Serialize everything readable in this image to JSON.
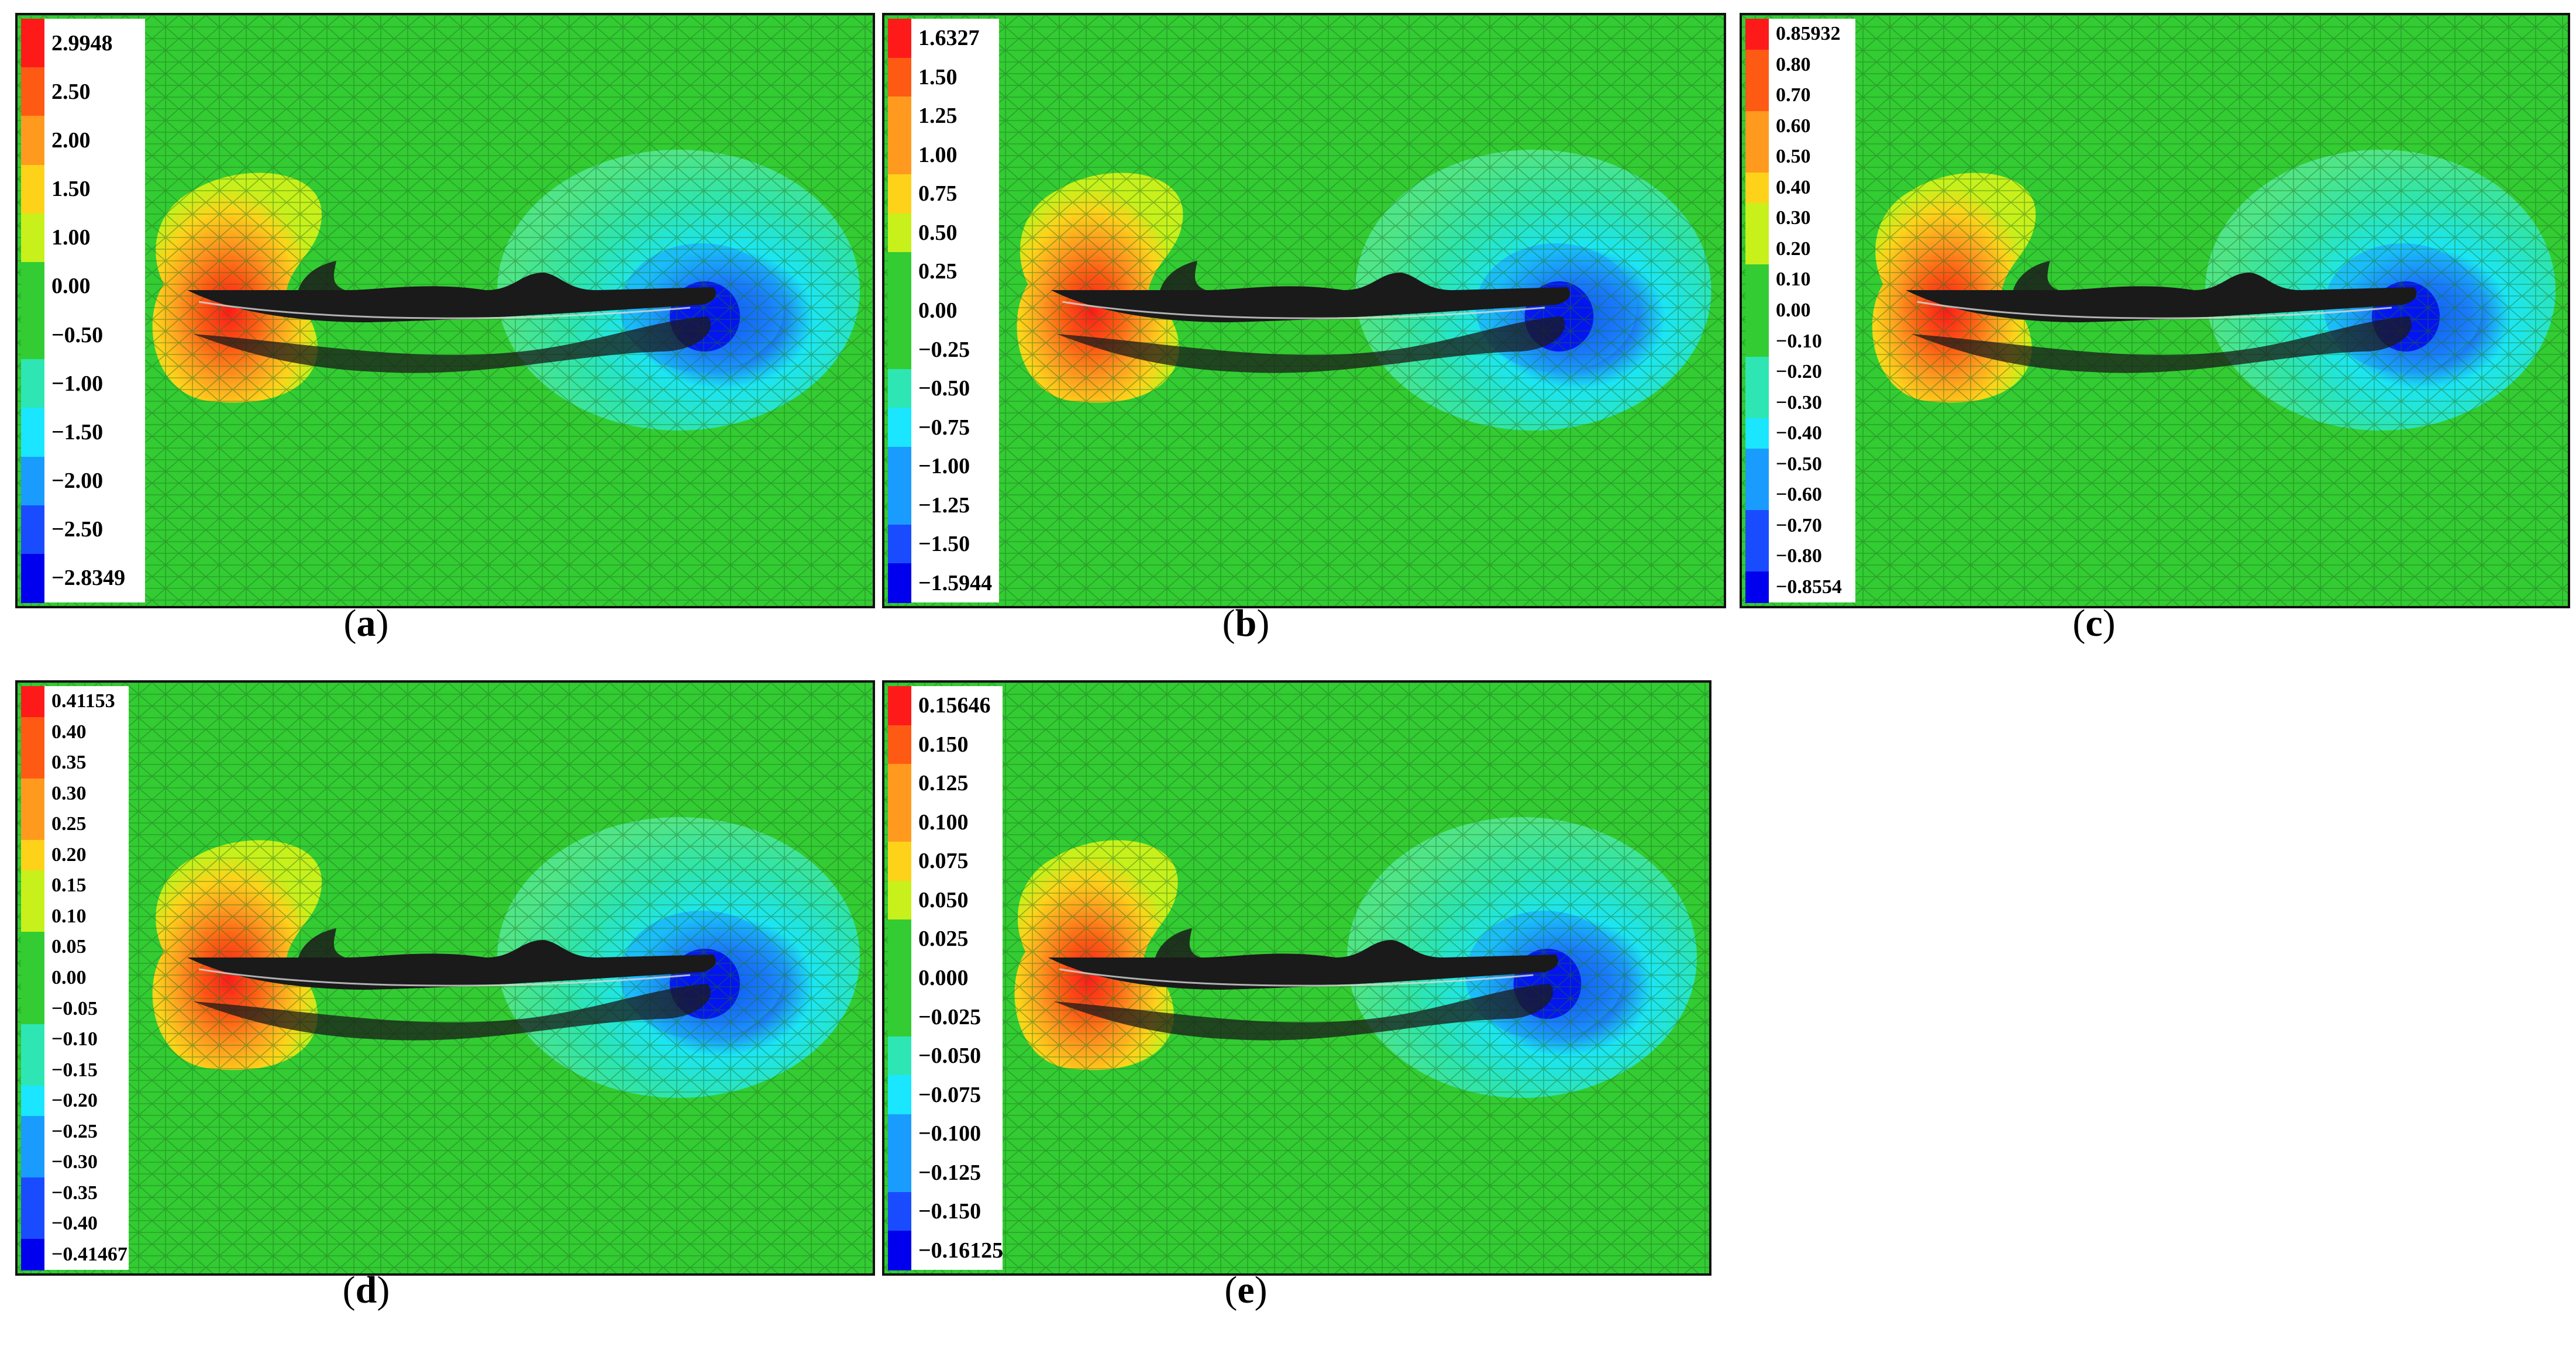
{
  "panels": [
    {
      "id": "a",
      "caption_open": "(",
      "caption_letter": "a",
      "caption_close": ")",
      "legend": [
        "2.9948",
        "2.50",
        "2.00",
        "1.50",
        "1.00",
        "0.00",
        "−0.50",
        "−1.00",
        "−1.50",
        "−2.00",
        "−2.50",
        "−2.8349"
      ]
    },
    {
      "id": "b",
      "caption_open": "(",
      "caption_letter": "b",
      "caption_close": ")",
      "legend": [
        "1.6327",
        "1.50",
        "1.25",
        "1.00",
        "0.75",
        "0.50",
        "0.25",
        "0.00",
        "−0.25",
        "−0.50",
        "−0.75",
        "−1.00",
        "−1.25",
        "−1.50",
        "−1.5944"
      ]
    },
    {
      "id": "c",
      "caption_open": "(",
      "caption_letter": "c",
      "caption_close": ")",
      "legend": [
        "0.85932",
        "0.80",
        "0.70",
        "0.60",
        "0.50",
        "0.40",
        "0.30",
        "0.20",
        "0.10",
        "0.00",
        "−0.10",
        "−0.20",
        "−0.30",
        "−0.40",
        "−0.50",
        "−0.60",
        "−0.70",
        "−0.80",
        "−0.8554"
      ]
    },
    {
      "id": "d",
      "caption_open": "(",
      "caption_letter": "d",
      "caption_close": ")",
      "legend": [
        "0.41153",
        "0.40",
        "0.35",
        "0.30",
        "0.25",
        "0.20",
        "0.15",
        "0.10",
        "0.05",
        "0.00",
        "−0.05",
        "−0.10",
        "−0.15",
        "−0.20",
        "−0.25",
        "−0.30",
        "−0.35",
        "−0.40",
        "−0.41467"
      ]
    },
    {
      "id": "e",
      "caption_open": "(",
      "caption_letter": "e",
      "caption_close": ")",
      "legend": [
        "0.15646",
        "0.150",
        "0.125",
        "0.100",
        "0.075",
        "0.050",
        "0.025",
        "0.000",
        "−0.025",
        "−0.050",
        "−0.075",
        "−0.100",
        "−0.125",
        "−0.150",
        "−0.16125"
      ]
    }
  ],
  "colors": {
    "field_green": "#33cc33",
    "mesh_line": "#1d6e1d",
    "body_dark": "#1a1a1a",
    "scale": [
      "#ff1a1a",
      "#ff5a14",
      "#ff9a1f",
      "#ffd21a",
      "#c8f01a",
      "#33cc33",
      "#33cc33",
      "#2ee6b4",
      "#1ae6ff",
      "#1a9cff",
      "#1a4cff",
      "#0000ee"
    ]
  }
}
